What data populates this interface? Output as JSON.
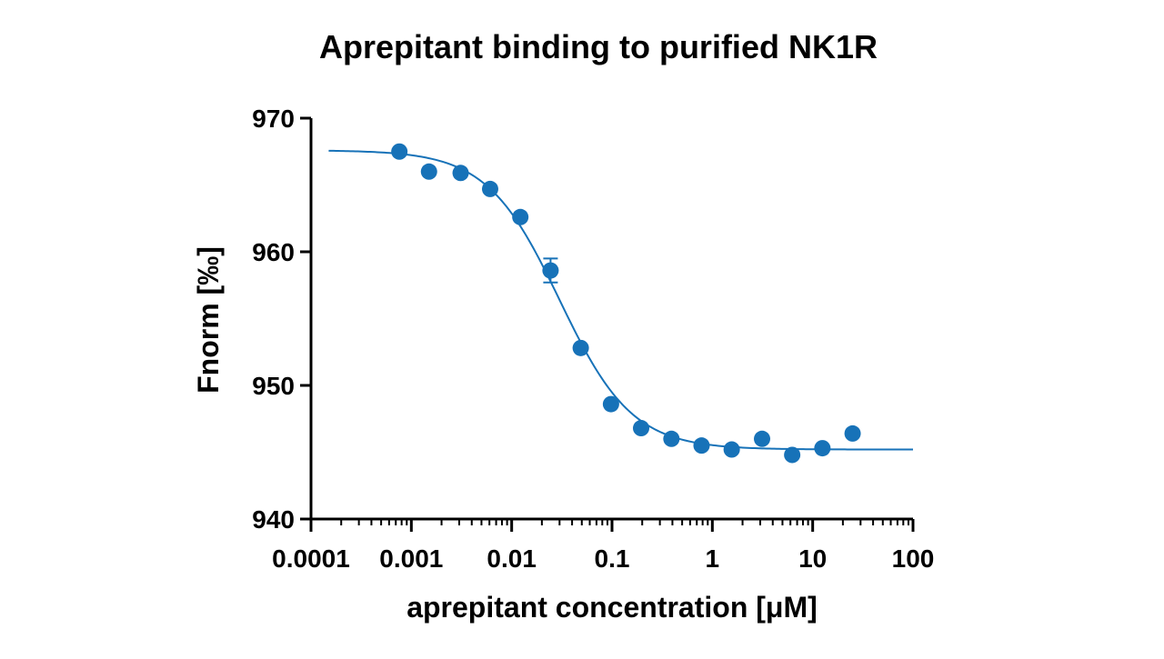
{
  "chart_data": {
    "type": "scatter",
    "title": "Aprepitant binding to purified NK1R",
    "xlabel": "aprepitant concentration [μM]",
    "ylabel": "Fnorm [‰]",
    "x_scale": "log",
    "xlim": [
      0.0001,
      100
    ],
    "ylim": [
      940,
      970
    ],
    "x_ticks": [
      0.0001,
      0.001,
      0.01,
      0.1,
      1,
      10,
      100
    ],
    "x_tick_labels": [
      "0.0001",
      "0.001",
      "0.01",
      "0.1",
      "1",
      "10",
      "100"
    ],
    "y_ticks": [
      940,
      950,
      960,
      970
    ],
    "y_tick_labels": [
      "940",
      "950",
      "960",
      "970"
    ],
    "grid": false,
    "legend": "none",
    "color": "#1772b8",
    "series": [
      {
        "type": "scatter",
        "x": [
          0.00076,
          0.0015,
          0.0031,
          0.0061,
          0.0122,
          0.0244,
          0.0488,
          0.0977,
          0.195,
          0.391,
          0.781,
          1.56,
          3.13,
          6.25,
          12.5,
          25
        ],
        "y": [
          967.5,
          966.0,
          965.9,
          964.7,
          962.6,
          958.6,
          952.8,
          948.6,
          946.8,
          946.0,
          945.5,
          945.2,
          946.0,
          944.8,
          945.3,
          946.4
        ],
        "error": [
          0,
          0,
          0,
          0,
          0,
          0.9,
          0,
          0,
          0,
          0,
          0,
          0,
          0,
          0,
          0,
          0
        ]
      },
      {
        "type": "line",
        "fit": {
          "model": "sigmoid",
          "top": 967.6,
          "bottom": 945.2,
          "ec50": 0.03,
          "hill": 1.2,
          "x_range": [
            0.00015,
            100
          ]
        }
      }
    ]
  }
}
